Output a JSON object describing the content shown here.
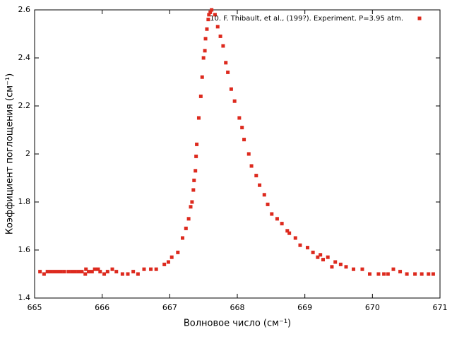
{
  "chart_data": {
    "type": "scatter",
    "xlabel": "Волновое число (см⁻¹)",
    "ylabel": "Коэффициент поглощения (см⁻¹)",
    "xlim": [
      665,
      671
    ],
    "xticks": [
      665,
      666,
      667,
      668,
      669,
      670,
      671
    ],
    "ylim": [
      1.4,
      2.6
    ],
    "yticks": [
      1.4,
      1.6,
      1.8,
      2,
      2.2,
      2.4,
      2.6
    ],
    "legend": "upper right",
    "series": [
      {
        "name": "10. F. Thibault, et al., (199?). Experiment. P=3.95 atm.",
        "color": "#dd2a1e",
        "x": [
          665.08,
          665.14,
          665.19,
          665.24,
          665.29,
          665.34,
          665.39,
          665.44,
          665.5,
          665.55,
          665.6,
          665.65,
          665.7,
          665.75,
          665.76,
          665.8,
          665.85,
          665.89,
          665.94,
          665.97,
          666.03,
          666.08,
          666.15,
          666.21,
          666.3,
          666.38,
          666.46,
          666.53,
          666.62,
          666.72,
          666.8,
          666.92,
          666.98,
          667.03,
          667.12,
          667.19,
          667.24,
          667.28,
          667.31,
          667.33,
          667.35,
          667.36,
          667.38,
          667.39,
          667.4,
          667.43,
          667.46,
          667.48,
          667.5,
          667.52,
          667.53,
          667.55,
          667.57,
          667.58,
          667.6,
          667.62,
          667.67,
          667.71,
          667.75,
          667.79,
          667.83,
          667.86,
          667.91,
          667.96,
          668.03,
          668.07,
          668.1,
          668.17,
          668.21,
          668.28,
          668.33,
          668.4,
          668.45,
          668.51,
          668.59,
          668.66,
          668.74,
          668.77,
          668.86,
          668.93,
          669.04,
          669.12,
          669.19,
          669.23,
          669.27,
          669.34,
          669.4,
          669.45,
          669.53,
          669.61,
          669.72,
          669.85,
          669.96,
          670.09,
          670.17,
          670.23,
          670.31,
          670.41,
          670.51,
          670.63,
          670.73,
          670.83,
          670.9
        ],
        "values": [
          1.51,
          1.5,
          1.51,
          1.51,
          1.51,
          1.51,
          1.51,
          1.51,
          1.51,
          1.51,
          1.51,
          1.51,
          1.51,
          1.5,
          1.52,
          1.51,
          1.51,
          1.52,
          1.52,
          1.51,
          1.5,
          1.51,
          1.52,
          1.51,
          1.5,
          1.5,
          1.51,
          1.5,
          1.52,
          1.52,
          1.52,
          1.54,
          1.55,
          1.57,
          1.59,
          1.65,
          1.69,
          1.73,
          1.78,
          1.8,
          1.85,
          1.89,
          1.93,
          1.99,
          2.04,
          2.15,
          2.24,
          2.32,
          2.4,
          2.43,
          2.48,
          2.52,
          2.56,
          2.58,
          2.59,
          2.6,
          2.58,
          2.53,
          2.49,
          2.45,
          2.38,
          2.34,
          2.27,
          2.22,
          2.15,
          2.11,
          2.06,
          2,
          1.95,
          1.91,
          1.87,
          1.83,
          1.79,
          1.75,
          1.73,
          1.71,
          1.68,
          1.67,
          1.65,
          1.62,
          1.61,
          1.59,
          1.57,
          1.58,
          1.56,
          1.57,
          1.53,
          1.55,
          1.54,
          1.53,
          1.52,
          1.52,
          1.5,
          1.5,
          1.5,
          1.5,
          1.52,
          1.51,
          1.5,
          1.5,
          1.5,
          1.5,
          1.5
        ]
      }
    ]
  }
}
